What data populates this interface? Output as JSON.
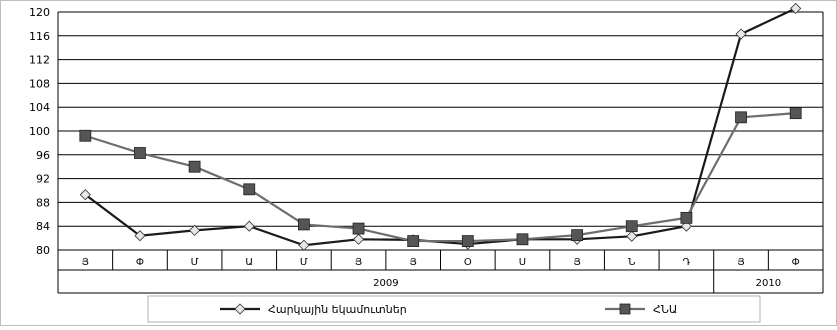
{
  "chart_data": {
    "type": "line",
    "categories": [
      "Յ",
      "Փ",
      "Մ",
      "Ա",
      "Մ",
      "Յ",
      "Յ",
      "Օ",
      "Ս",
      "Յ",
      "Ն",
      "Դ",
      "Յ",
      "Փ"
    ],
    "year_groups": [
      {
        "label": "2009",
        "start": 0,
        "end": 11
      },
      {
        "label": "2010",
        "start": 12,
        "end": 13
      }
    ],
    "ylim": [
      80,
      120
    ],
    "yticks": [
      80,
      84,
      88,
      92,
      96,
      100,
      104,
      108,
      112,
      116,
      120
    ],
    "grid": true,
    "legend_position": "bottom",
    "series": [
      {
        "name": "Հարկային եկամուտներ",
        "marker": "diamond",
        "color": "#1a1a1a",
        "values": [
          89.3,
          82.4,
          83.3,
          84.0,
          80.8,
          81.8,
          81.7,
          81.0,
          81.8,
          81.8,
          82.3,
          84.0,
          116.3,
          120.6
        ]
      },
      {
        "name": "ՀՆԱ",
        "marker": "square",
        "color": "#6e6e6e",
        "values": [
          99.2,
          96.3,
          94.0,
          90.2,
          84.3,
          83.6,
          81.5,
          81.5,
          81.8,
          82.5,
          84.0,
          85.4,
          102.3,
          103.0
        ]
      }
    ]
  }
}
